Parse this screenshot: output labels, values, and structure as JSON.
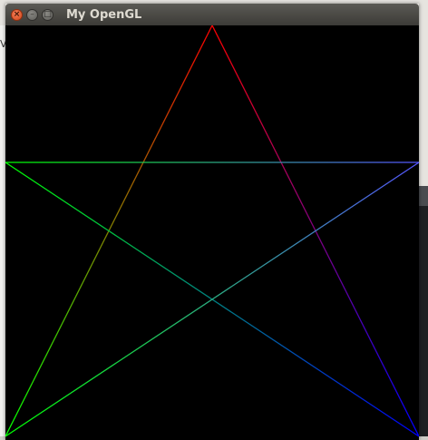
{
  "window": {
    "title": "My OpenGL",
    "close_glyph": "×",
    "minimize_glyph": "–",
    "maximize_glyph": "□"
  },
  "background": {
    "left_app_letter": "V"
  },
  "scene": {
    "background_color": "#000000",
    "vertex_colors": {
      "top": "#ff0000",
      "left": "#00ff00",
      "right": "#5555ff",
      "bottom_left": "#00ff00",
      "bottom_right": "#0000ff",
      "center": "#008080"
    }
  }
}
